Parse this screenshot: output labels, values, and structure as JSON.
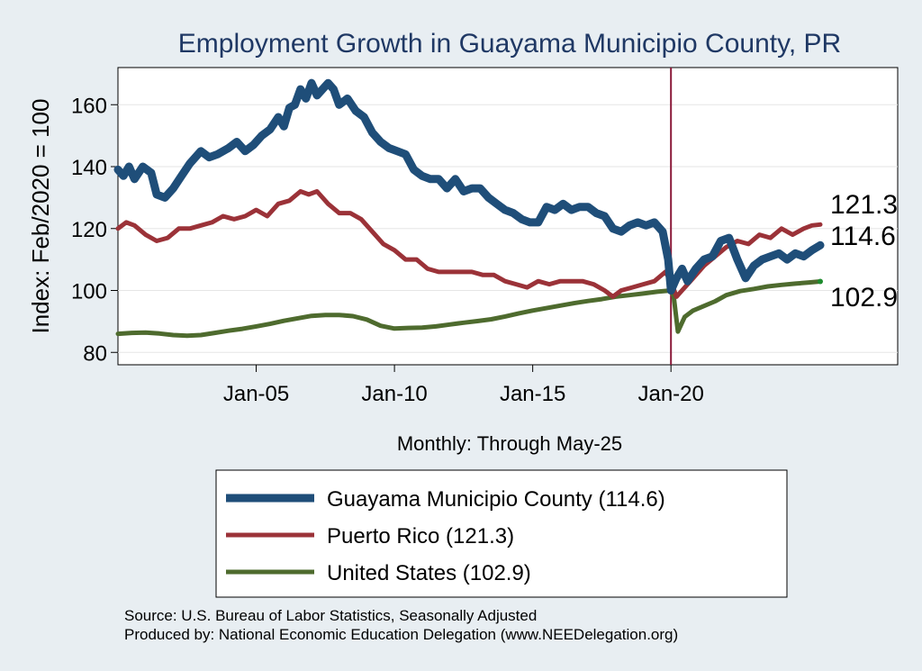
{
  "chart_data": {
    "type": "line",
    "title": "Employment Growth in Guayama Municipio  County, PR",
    "ylabel": "Index: Feb/2020 = 100",
    "xlabel": "Monthly: Through May-25",
    "ylim": [
      76,
      172
    ],
    "xlim": [
      2000.0,
      2028.2
    ],
    "yticks": [
      80,
      100,
      120,
      140,
      160
    ],
    "xticks": [
      {
        "value": 2005.0,
        "label": "Jan-05"
      },
      {
        "value": 2010.0,
        "label": "Jan-10"
      },
      {
        "value": 2015.0,
        "label": "Jan-15"
      },
      {
        "value": 2020.0,
        "label": "Jan-20"
      }
    ],
    "reference_line": {
      "x": 2020.0,
      "color": "#8b1a3a"
    },
    "grid": true,
    "series": [
      {
        "name": "Guayama Municipio  County (114.6)",
        "color": "#1f4e79",
        "end_label": "114.6",
        "points": [
          [
            2000.0,
            139
          ],
          [
            2000.2,
            137
          ],
          [
            2000.4,
            140
          ],
          [
            2000.6,
            136
          ],
          [
            2000.9,
            140
          ],
          [
            2001.2,
            138
          ],
          [
            2001.4,
            131
          ],
          [
            2001.7,
            130
          ],
          [
            2002.0,
            133
          ],
          [
            2002.3,
            137
          ],
          [
            2002.6,
            141
          ],
          [
            2003.0,
            145
          ],
          [
            2003.3,
            143
          ],
          [
            2003.6,
            144
          ],
          [
            2004.0,
            146
          ],
          [
            2004.3,
            148
          ],
          [
            2004.6,
            145
          ],
          [
            2004.9,
            147
          ],
          [
            2005.2,
            150
          ],
          [
            2005.5,
            152
          ],
          [
            2005.8,
            156
          ],
          [
            2006.0,
            153
          ],
          [
            2006.2,
            159
          ],
          [
            2006.4,
            160
          ],
          [
            2006.6,
            165
          ],
          [
            2006.8,
            162
          ],
          [
            2007.0,
            167
          ],
          [
            2007.2,
            163
          ],
          [
            2007.4,
            165
          ],
          [
            2007.6,
            167
          ],
          [
            2007.8,
            165
          ],
          [
            2008.0,
            160
          ],
          [
            2008.3,
            162
          ],
          [
            2008.6,
            158
          ],
          [
            2008.9,
            156
          ],
          [
            2009.2,
            151
          ],
          [
            2009.5,
            148
          ],
          [
            2009.8,
            146
          ],
          [
            2010.1,
            145
          ],
          [
            2010.4,
            144
          ],
          [
            2010.7,
            139
          ],
          [
            2011.0,
            137
          ],
          [
            2011.3,
            136
          ],
          [
            2011.6,
            136
          ],
          [
            2011.9,
            133
          ],
          [
            2012.2,
            136
          ],
          [
            2012.5,
            132
          ],
          [
            2012.8,
            133
          ],
          [
            2013.1,
            133
          ],
          [
            2013.4,
            130
          ],
          [
            2013.7,
            128
          ],
          [
            2014.0,
            126
          ],
          [
            2014.3,
            125
          ],
          [
            2014.6,
            123
          ],
          [
            2014.9,
            122
          ],
          [
            2015.2,
            122
          ],
          [
            2015.5,
            127
          ],
          [
            2015.8,
            126
          ],
          [
            2016.1,
            128
          ],
          [
            2016.4,
            126
          ],
          [
            2016.7,
            127
          ],
          [
            2017.0,
            127
          ],
          [
            2017.3,
            125
          ],
          [
            2017.6,
            124
          ],
          [
            2017.9,
            120
          ],
          [
            2018.2,
            119
          ],
          [
            2018.5,
            121
          ],
          [
            2018.8,
            122
          ],
          [
            2019.1,
            121
          ],
          [
            2019.4,
            122
          ],
          [
            2019.7,
            119
          ],
          [
            2019.9,
            110
          ],
          [
            2020.0,
            100
          ],
          [
            2020.2,
            104
          ],
          [
            2020.4,
            107
          ],
          [
            2020.6,
            103
          ],
          [
            2020.9,
            107
          ],
          [
            2021.2,
            110
          ],
          [
            2021.5,
            111
          ],
          [
            2021.8,
            116
          ],
          [
            2022.1,
            117
          ],
          [
            2022.4,
            110
          ],
          [
            2022.7,
            104
          ],
          [
            2023.0,
            108
          ],
          [
            2023.3,
            110
          ],
          [
            2023.6,
            111
          ],
          [
            2023.9,
            112
          ],
          [
            2024.2,
            110
          ],
          [
            2024.5,
            112
          ],
          [
            2024.8,
            111
          ],
          [
            2025.1,
            113
          ],
          [
            2025.4,
            114.6
          ]
        ]
      },
      {
        "name": "Puerto Rico (121.3)",
        "color": "#9b3238",
        "end_label": "121.3",
        "points": [
          [
            2000.0,
            120
          ],
          [
            2000.3,
            122
          ],
          [
            2000.6,
            121
          ],
          [
            2001.0,
            118
          ],
          [
            2001.4,
            116
          ],
          [
            2001.8,
            117
          ],
          [
            2002.2,
            120
          ],
          [
            2002.6,
            120
          ],
          [
            2003.0,
            121
          ],
          [
            2003.4,
            122
          ],
          [
            2003.8,
            124
          ],
          [
            2004.2,
            123
          ],
          [
            2004.6,
            124
          ],
          [
            2005.0,
            126
          ],
          [
            2005.4,
            124
          ],
          [
            2005.8,
            128
          ],
          [
            2006.2,
            129
          ],
          [
            2006.6,
            132
          ],
          [
            2006.9,
            131
          ],
          [
            2007.2,
            132
          ],
          [
            2007.6,
            128
          ],
          [
            2008.0,
            125
          ],
          [
            2008.4,
            125
          ],
          [
            2008.8,
            123
          ],
          [
            2009.2,
            119
          ],
          [
            2009.6,
            115
          ],
          [
            2010.0,
            113
          ],
          [
            2010.4,
            110
          ],
          [
            2010.8,
            110
          ],
          [
            2011.2,
            107
          ],
          [
            2011.6,
            106
          ],
          [
            2012.0,
            106
          ],
          [
            2012.4,
            106
          ],
          [
            2012.8,
            106
          ],
          [
            2013.2,
            105
          ],
          [
            2013.6,
            105
          ],
          [
            2014.0,
            103
          ],
          [
            2014.4,
            102
          ],
          [
            2014.8,
            101
          ],
          [
            2015.2,
            103
          ],
          [
            2015.6,
            102
          ],
          [
            2016.0,
            103
          ],
          [
            2016.4,
            103
          ],
          [
            2016.8,
            103
          ],
          [
            2017.2,
            102
          ],
          [
            2017.6,
            100
          ],
          [
            2017.9,
            98
          ],
          [
            2018.2,
            100
          ],
          [
            2018.6,
            101
          ],
          [
            2019.0,
            102
          ],
          [
            2019.4,
            103
          ],
          [
            2019.8,
            106
          ],
          [
            2020.0,
            103
          ],
          [
            2020.2,
            98
          ],
          [
            2020.4,
            100
          ],
          [
            2020.8,
            104
          ],
          [
            2021.2,
            108
          ],
          [
            2021.6,
            111
          ],
          [
            2022.0,
            114
          ],
          [
            2022.4,
            116
          ],
          [
            2022.8,
            115
          ],
          [
            2023.2,
            118
          ],
          [
            2023.6,
            117
          ],
          [
            2024.0,
            120
          ],
          [
            2024.4,
            118
          ],
          [
            2024.8,
            120
          ],
          [
            2025.1,
            121
          ],
          [
            2025.4,
            121.3
          ]
        ]
      },
      {
        "name": "United States (102.9)",
        "color": "#4e6b2e",
        "end_label": "102.9",
        "points": [
          [
            2000.0,
            86
          ],
          [
            2000.5,
            86.3
          ],
          [
            2001.0,
            86.4
          ],
          [
            2001.5,
            86.1
          ],
          [
            2002.0,
            85.6
          ],
          [
            2002.5,
            85.4
          ],
          [
            2003.0,
            85.6
          ],
          [
            2003.5,
            86.3
          ],
          [
            2004.0,
            87
          ],
          [
            2004.5,
            87.6
          ],
          [
            2005.0,
            88.4
          ],
          [
            2005.5,
            89.2
          ],
          [
            2006.0,
            90.2
          ],
          [
            2006.5,
            91
          ],
          [
            2007.0,
            91.8
          ],
          [
            2007.5,
            92.1
          ],
          [
            2008.0,
            92.1
          ],
          [
            2008.5,
            91.7
          ],
          [
            2009.0,
            90.6
          ],
          [
            2009.5,
            88.6
          ],
          [
            2010.0,
            87.7
          ],
          [
            2010.5,
            87.9
          ],
          [
            2011.0,
            88
          ],
          [
            2011.5,
            88.4
          ],
          [
            2012.0,
            89
          ],
          [
            2012.5,
            89.6
          ],
          [
            2013.0,
            90.1
          ],
          [
            2013.5,
            90.7
          ],
          [
            2014.0,
            91.6
          ],
          [
            2014.5,
            92.6
          ],
          [
            2015.0,
            93.5
          ],
          [
            2015.5,
            94.3
          ],
          [
            2016.0,
            95.1
          ],
          [
            2016.5,
            95.9
          ],
          [
            2017.0,
            96.6
          ],
          [
            2017.5,
            97.2
          ],
          [
            2018.0,
            98
          ],
          [
            2018.5,
            98.5
          ],
          [
            2019.0,
            99
          ],
          [
            2019.5,
            99.6
          ],
          [
            2020.0,
            100
          ],
          [
            2020.1,
            98
          ],
          [
            2020.25,
            86.7
          ],
          [
            2020.5,
            91.5
          ],
          [
            2020.8,
            93.5
          ],
          [
            2021.2,
            95
          ],
          [
            2021.6,
            96.5
          ],
          [
            2022.0,
            98.5
          ],
          [
            2022.5,
            99.8
          ],
          [
            2023.0,
            100.5
          ],
          [
            2023.5,
            101.3
          ],
          [
            2024.0,
            101.8
          ],
          [
            2024.5,
            102.2
          ],
          [
            2025.0,
            102.6
          ],
          [
            2025.4,
            102.9
          ]
        ]
      }
    ],
    "legend": {
      "position": "bottom"
    }
  },
  "source_line": "Source: U.S. Bureau of Labor Statistics, Seasonally Adjusted",
  "produced_line": "Produced by: National Economic Education Delegation (www.NEEDelegation.org)"
}
